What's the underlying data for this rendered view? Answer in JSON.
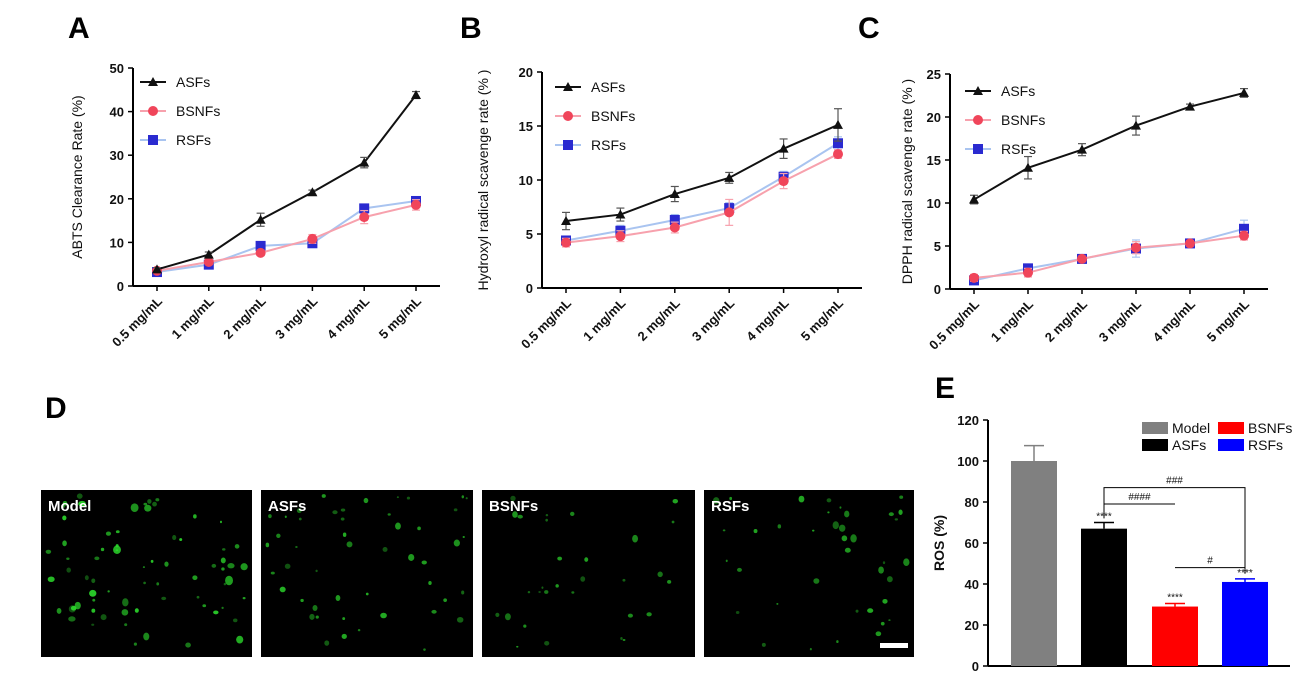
{
  "panels": {
    "A": "A",
    "B": "B",
    "C": "C",
    "D": "D",
    "E": "E"
  },
  "colors": {
    "ASFs": "#111111",
    "BSNFs": "#f0455a",
    "RSFs": "#2a2ad0",
    "BSNFs_line": "#f7a1ad",
    "RSFs_line": "#a9c4f0",
    "Model_bar": "#808080",
    "ASFs_bar": "#000000",
    "BSNFs_bar": "#ff0000",
    "RSFs_bar": "#0000ff",
    "fluorescence": "#2bd62b"
  },
  "chart_data": [
    {
      "id": "A",
      "type": "line",
      "ylabel": "ABTS Clearance Rate (%)",
      "ylim": [
        0,
        50
      ],
      "yticks": [
        0,
        10,
        20,
        30,
        40,
        50
      ],
      "categories": [
        "0.5 mg/mL",
        "1 mg/mL",
        "2 mg/mL",
        "3 mg/mL",
        "4 mg/mL",
        "5 mg/mL"
      ],
      "legend_position": "top-left",
      "series": [
        {
          "name": "ASFs",
          "marker": "triangle",
          "values": [
            3.8,
            7.2,
            15.2,
            21.5,
            28.3,
            43.8
          ],
          "errors": [
            0.4,
            0.6,
            1.5,
            0.5,
            1.2,
            0.8
          ]
        },
        {
          "name": "BSNFs",
          "marker": "circle",
          "values": [
            3.5,
            5.5,
            7.6,
            10.8,
            15.8,
            18.6
          ],
          "errors": [
            0.4,
            0.5,
            0.6,
            1.0,
            1.5,
            1.2
          ]
        },
        {
          "name": "RSFs",
          "marker": "square",
          "values": [
            3.2,
            4.9,
            9.2,
            9.8,
            17.8,
            19.5
          ],
          "errors": [
            0.3,
            0.5,
            0.6,
            0.6,
            0.8,
            0.9
          ]
        }
      ]
    },
    {
      "id": "B",
      "type": "line",
      "ylabel": "Hydroxyl radical scavenge rate (% )",
      "ylim": [
        0,
        20
      ],
      "yticks": [
        0,
        5,
        10,
        15,
        20
      ],
      "categories": [
        "0.5 mg/mL",
        "1 mg/mL",
        "2 mg/mL",
        "3 mg/mL",
        "4 mg/mL",
        "5 mg/mL"
      ],
      "legend_position": "top-left",
      "series": [
        {
          "name": "ASFs",
          "marker": "triangle",
          "values": [
            6.2,
            6.8,
            8.7,
            10.2,
            12.9,
            15.1
          ],
          "errors": [
            0.8,
            0.6,
            0.7,
            0.5,
            0.9,
            1.5
          ]
        },
        {
          "name": "BSNFs",
          "marker": "circle",
          "values": [
            4.2,
            4.8,
            5.6,
            7.0,
            9.9,
            12.4
          ],
          "errors": [
            0.4,
            0.5,
            0.5,
            1.2,
            0.7,
            0.4
          ]
        },
        {
          "name": "RSFs",
          "marker": "square",
          "values": [
            4.4,
            5.3,
            6.3,
            7.4,
            10.3,
            13.4
          ],
          "errors": [
            0.4,
            0.5,
            0.5,
            0.5,
            0.5,
            0.6
          ]
        }
      ]
    },
    {
      "id": "C",
      "type": "line",
      "ylabel": "DPPH radical scavenge rate (% )",
      "ylim": [
        0,
        25
      ],
      "yticks": [
        0,
        5,
        10,
        15,
        20,
        25
      ],
      "categories": [
        "0.5 mg/mL",
        "1 mg/mL",
        "2 mg/mL",
        "3 mg/mL",
        "4 mg/mL",
        "5 mg/mL"
      ],
      "legend_position": "top-left",
      "series": [
        {
          "name": "ASFs",
          "marker": "triangle",
          "values": [
            10.4,
            14.1,
            16.2,
            19.0,
            21.2,
            22.8
          ],
          "errors": [
            0.5,
            1.3,
            0.7,
            1.1,
            0.3,
            0.5
          ]
        },
        {
          "name": "BSNFs",
          "marker": "circle",
          "values": [
            1.3,
            1.9,
            3.5,
            4.8,
            5.3,
            6.2
          ],
          "errors": [
            0.4,
            0.5,
            0.3,
            0.7,
            0.3,
            0.5
          ]
        },
        {
          "name": "RSFs",
          "marker": "square",
          "values": [
            1.0,
            2.4,
            3.5,
            4.7,
            5.3,
            7.0
          ],
          "errors": [
            0.4,
            0.5,
            0.3,
            1.0,
            0.3,
            1.0
          ]
        }
      ]
    },
    {
      "id": "E",
      "type": "bar",
      "ylabel": "ROS (%)",
      "ylim": [
        0,
        120
      ],
      "yticks": [
        0,
        20,
        40,
        60,
        80,
        100,
        120
      ],
      "categories": [
        "Model",
        "ASFs",
        "BSNFs",
        "RSFs"
      ],
      "values": [
        100,
        67,
        29,
        41
      ],
      "errors": [
        7.5,
        3.0,
        1.5,
        1.5
      ],
      "bar_stars": [
        "",
        "****",
        "****",
        "****"
      ],
      "legend_position": "top-right",
      "legend": [
        "Model",
        "BSNFs",
        "ASFs",
        "RSFs"
      ],
      "brackets": [
        {
          "from": "ASFs",
          "to": "RSFs",
          "label": "###"
        },
        {
          "from": "ASFs",
          "to": "BSNFs",
          "label": "####"
        },
        {
          "from": "BSNFs",
          "to": "RSFs",
          "label": "#"
        }
      ]
    }
  ],
  "micrographs": [
    {
      "label": "Model",
      "density": 70,
      "brightness": 1.0
    },
    {
      "label": "ASFs",
      "density": 48,
      "brightness": 0.8
    },
    {
      "label": "BSNFs",
      "density": 30,
      "brightness": 0.7
    },
    {
      "label": "RSFs",
      "density": 38,
      "brightness": 0.75
    }
  ]
}
